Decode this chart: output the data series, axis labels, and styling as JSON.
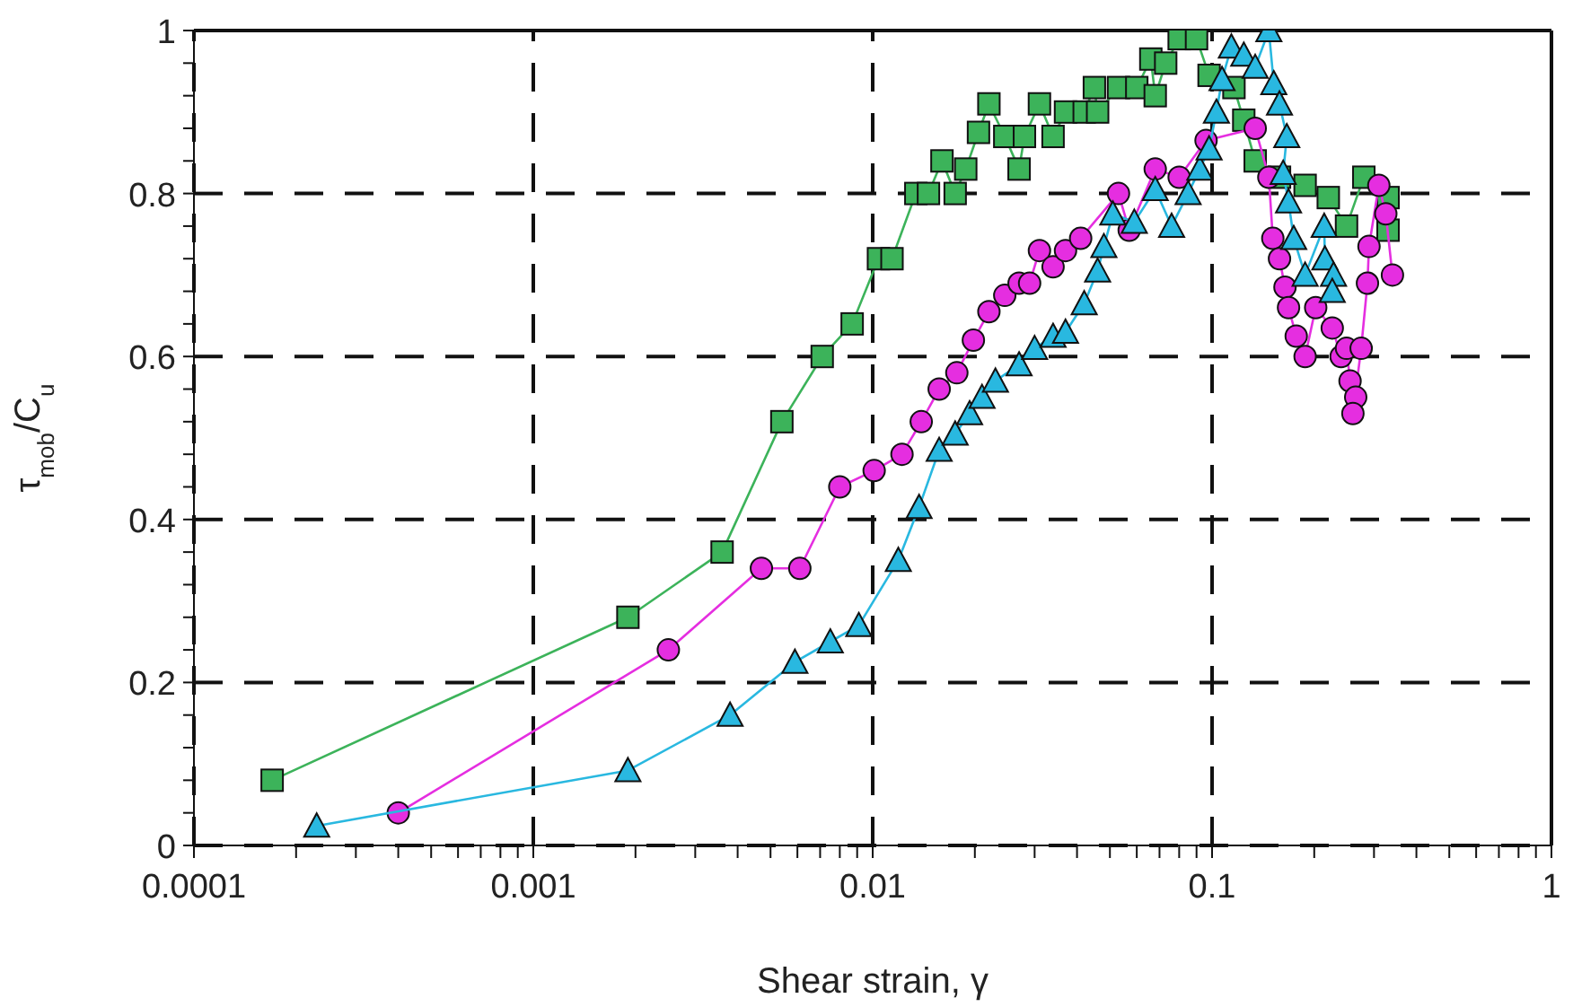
{
  "chart_data": {
    "type": "line",
    "xlabel": "Shear strain, γ",
    "ylabel": "τ$_{mob}$/C$_{u}$",
    "log": "x",
    "grid": true,
    "line_style": "solid",
    "xlim": [
      0.0001,
      1
    ],
    "ylim": [
      0,
      1
    ],
    "xticks": [
      0.0001,
      {
        "value": 0.0002,
        "label": null
      },
      {
        "value": 0.0003,
        "label": null
      },
      {
        "value": 0.0004,
        "label": null
      },
      {
        "value": 0.0005,
        "label": null
      },
      {
        "value": 0.0006,
        "label": null
      },
      {
        "value": 0.0007,
        "label": null
      },
      {
        "value": 0.0008,
        "label": null
      },
      {
        "value": 0.0009,
        "label": null
      },
      0.001,
      {
        "value": 0.002,
        "label": null
      },
      {
        "value": 0.003,
        "label": null
      },
      {
        "value": 0.004,
        "label": null
      },
      {
        "value": 0.005,
        "label": null
      },
      {
        "value": 0.006,
        "label": null
      },
      {
        "value": 0.007,
        "label": null
      },
      {
        "value": 0.008,
        "label": null
      },
      {
        "value": 0.009,
        "label": null
      },
      0.01,
      {
        "value": 0.02,
        "label": null
      },
      {
        "value": 0.03,
        "label": null
      },
      {
        "value": 0.04,
        "label": null
      },
      {
        "value": 0.05,
        "label": null
      },
      {
        "value": 0.06,
        "label": null
      },
      {
        "value": 0.07,
        "label": null
      },
      {
        "value": 0.08,
        "label": null
      },
      {
        "value": 0.09,
        "label": null
      },
      0.1,
      {
        "value": 0.2,
        "label": null
      },
      {
        "value": 0.3,
        "label": null
      },
      {
        "value": 0.4,
        "label": null
      },
      {
        "value": 0.5,
        "label": null
      },
      {
        "value": 0.6,
        "label": null
      },
      {
        "value": 0.7,
        "label": null
      },
      {
        "value": 0.8,
        "label": null
      },
      {
        "value": 0.9,
        "label": null
      },
      1
    ],
    "yticks": [
      0,
      {
        "value": 0.04,
        "label": null
      },
      {
        "value": 0.08,
        "label": null
      },
      {
        "value": 0.12,
        "label": null
      },
      {
        "value": 0.16,
        "label": null
      },
      0.2,
      {
        "value": 0.24,
        "label": null
      },
      {
        "value": 0.28,
        "label": null
      },
      {
        "value": 0.32,
        "label": null
      },
      {
        "value": 0.36,
        "label": null
      },
      0.4,
      {
        "value": 0.44,
        "label": null
      },
      {
        "value": 0.48,
        "label": null
      },
      {
        "value": 0.52,
        "label": null
      },
      {
        "value": 0.56,
        "label": null
      },
      0.6,
      {
        "value": 0.64,
        "label": null
      },
      {
        "value": 0.68,
        "label": null
      },
      {
        "value": 0.72,
        "label": null
      },
      {
        "value": 0.76,
        "label": null
      },
      0.8,
      {
        "value": 0.84,
        "label": null
      },
      {
        "value": 0.88,
        "label": null
      },
      {
        "value": 0.92,
        "label": null
      },
      {
        "value": 0.96,
        "label": null
      },
      1
    ],
    "series": [
      {
        "color": "#3cb35a",
        "marker": "square",
        "x": [
          0.00017,
          0.0019,
          0.0036,
          0.0054,
          0.0071,
          0.0087,
          0.0104,
          0.0114,
          0.0134,
          0.0146,
          0.016,
          0.0175,
          0.0188,
          0.0205,
          0.022,
          0.0245,
          0.027,
          0.028,
          0.031,
          0.034,
          0.037,
          0.042,
          0.045,
          0.046,
          0.053,
          0.06,
          0.066,
          0.068,
          0.073,
          0.08,
          0.09,
          0.098,
          0.116,
          0.124,
          0.134,
          0.158,
          0.188,
          0.22,
          0.249,
          0.28,
          0.33,
          0.33
        ],
        "values": [
          0.08,
          0.28,
          0.36,
          0.52,
          0.6,
          0.64,
          0.72,
          0.72,
          0.8,
          0.8,
          0.84,
          0.8,
          0.83,
          0.875,
          0.91,
          0.87,
          0.83,
          0.87,
          0.91,
          0.87,
          0.9,
          0.9,
          0.93,
          0.9,
          0.93,
          0.93,
          0.965,
          0.92,
          0.96,
          0.99,
          0.99,
          0.945,
          0.93,
          0.89,
          0.84,
          0.82,
          0.81,
          0.795,
          0.76,
          0.82,
          0.795,
          0.755
        ]
      },
      {
        "color": "#e52ee0",
        "marker": "circle",
        "x": [
          0.0004,
          0.0025,
          0.0047,
          0.0061,
          0.008,
          0.0101,
          0.0122,
          0.0139,
          0.0157,
          0.0177,
          0.0198,
          0.022,
          0.0245,
          0.027,
          0.029,
          0.031,
          0.034,
          0.037,
          0.041,
          0.053,
          0.057,
          0.068,
          0.08,
          0.096,
          0.134,
          0.147,
          0.151,
          0.158,
          0.164,
          0.168,
          0.177,
          0.188,
          0.202,
          0.226,
          0.24,
          0.249,
          0.255,
          0.265,
          0.26,
          0.275,
          0.287,
          0.29,
          0.31,
          0.325,
          0.34
        ],
        "values": [
          0.04,
          0.24,
          0.34,
          0.34,
          0.44,
          0.46,
          0.48,
          0.52,
          0.56,
          0.58,
          0.62,
          0.655,
          0.675,
          0.69,
          0.69,
          0.73,
          0.71,
          0.73,
          0.745,
          0.8,
          0.755,
          0.83,
          0.82,
          0.865,
          0.88,
          0.82,
          0.745,
          0.72,
          0.685,
          0.66,
          0.625,
          0.6,
          0.66,
          0.635,
          0.6,
          0.61,
          0.57,
          0.55,
          0.53,
          0.61,
          0.69,
          0.735,
          0.81,
          0.775,
          0.7
        ]
      },
      {
        "color": "#29b8e0",
        "marker": "triangle",
        "x": [
          0.00023,
          0.0019,
          0.0038,
          0.0059,
          0.0075,
          0.0091,
          0.0119,
          0.0137,
          0.0157,
          0.0175,
          0.0193,
          0.021,
          0.023,
          0.027,
          0.03,
          0.034,
          0.037,
          0.042,
          0.046,
          0.048,
          0.051,
          0.059,
          0.068,
          0.076,
          0.085,
          0.092,
          0.098,
          0.103,
          0.107,
          0.114,
          0.124,
          0.134,
          0.147,
          0.152,
          0.158,
          0.166,
          0.162,
          0.168,
          0.174,
          0.188,
          0.214,
          0.215,
          0.228,
          0.226
        ],
        "values": [
          0.024,
          0.092,
          0.16,
          0.225,
          0.25,
          0.27,
          0.35,
          0.415,
          0.485,
          0.505,
          0.53,
          0.55,
          0.57,
          0.59,
          0.61,
          0.625,
          0.63,
          0.665,
          0.705,
          0.735,
          0.775,
          0.765,
          0.805,
          0.76,
          0.8,
          0.83,
          0.855,
          0.9,
          0.94,
          0.98,
          0.97,
          0.955,
          1.0,
          0.935,
          0.91,
          0.87,
          0.825,
          0.79,
          0.745,
          0.7,
          0.76,
          0.72,
          0.7,
          0.68
        ]
      }
    ]
  }
}
